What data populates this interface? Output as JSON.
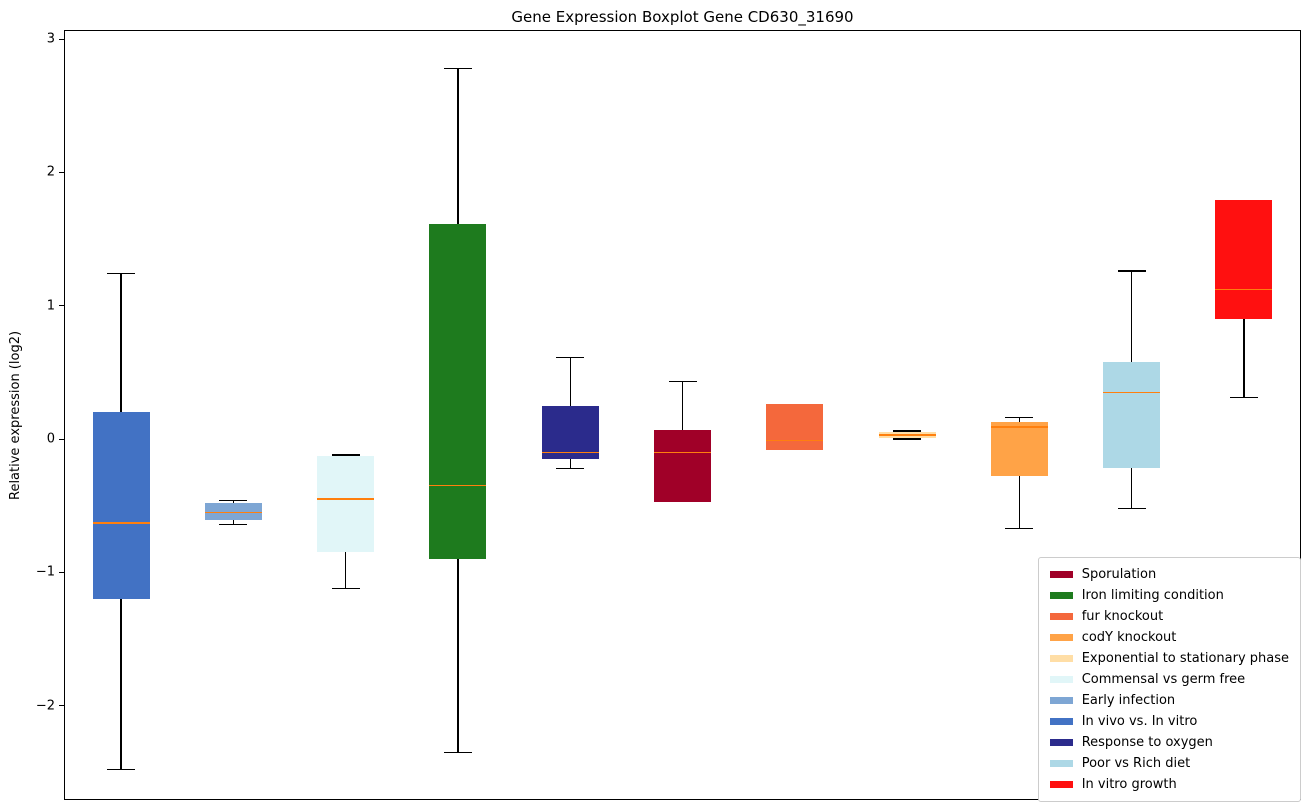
{
  "chart_data": {
    "type": "boxplot",
    "title": "Gene Expression Boxplot Gene CD630_31690",
    "ylabel": "Relative expression (log2)",
    "xlabel": "",
    "ylim": [
      -2.7,
      3.06
    ],
    "yticks": [
      3,
      2,
      1,
      0,
      -1,
      -2
    ],
    "grid": false,
    "legend_position": "lower right",
    "median_color": "#ff7f0e",
    "boxes": [
      {
        "name": "In vivo vs. In vitro",
        "color": "#4272C4",
        "whisker_low": -2.48,
        "q1": -1.2,
        "median": -0.63,
        "q3": 0.2,
        "whisker_high": 1.24
      },
      {
        "name": "Early infection",
        "color": "#7EA6D4",
        "whisker_low": -0.64,
        "q1": -0.61,
        "median": -0.55,
        "q3": -0.48,
        "whisker_high": -0.46
      },
      {
        "name": "Commensal vs germ free",
        "color": "#E1F6F8",
        "whisker_low": -1.12,
        "q1": -0.85,
        "median": -0.45,
        "q3": -0.13,
        "whisker_high": -0.12
      },
      {
        "name": "Iron limiting condition",
        "color": "#1E7B1E",
        "whisker_low": -2.35,
        "q1": -0.9,
        "median": -0.35,
        "q3": 1.61,
        "whisker_high": 2.78
      },
      {
        "name": "Response to oxygen",
        "color": "#2B2B8C",
        "whisker_low": -0.22,
        "q1": -0.15,
        "median": -0.1,
        "q3": 0.25,
        "whisker_high": 0.61
      },
      {
        "name": "Sporulation",
        "color": "#A00028",
        "whisker_low": -0.47,
        "q1": -0.47,
        "median": -0.1,
        "q3": 0.07,
        "whisker_high": 0.43
      },
      {
        "name": "fur knockout",
        "color": "#F4683C",
        "whisker_low": -0.08,
        "q1": -0.08,
        "median": -0.01,
        "q3": 0.26,
        "whisker_high": 0.26
      },
      {
        "name": "Exponential to stationary phase",
        "color": "#FFDEA6",
        "whisker_low": 0.0,
        "q1": 0.01,
        "median": 0.03,
        "q3": 0.05,
        "whisker_high": 0.06
      },
      {
        "name": "codY knockout",
        "color": "#FFA347",
        "whisker_low": -0.67,
        "q1": -0.28,
        "median": 0.09,
        "q3": 0.13,
        "whisker_high": 0.16
      },
      {
        "name": "Poor vs Rich diet",
        "color": "#ADD8E6",
        "whisker_low": -0.52,
        "q1": -0.22,
        "median": 0.35,
        "q3": 0.58,
        "whisker_high": 1.26
      },
      {
        "name": "In vitro growth",
        "color": "#FF1010",
        "whisker_low": 0.31,
        "q1": 0.9,
        "median": 1.12,
        "q3": 1.79,
        "whisker_high": 1.79
      }
    ],
    "legend": [
      {
        "label": "Sporulation",
        "color": "#A00028"
      },
      {
        "label": "Iron limiting condition",
        "color": "#1E7B1E"
      },
      {
        "label": "fur knockout",
        "color": "#F4683C"
      },
      {
        "label": "codY knockout",
        "color": "#FFA347"
      },
      {
        "label": "Exponential to stationary phase",
        "color": "#FFDEA6"
      },
      {
        "label": "Commensal vs germ free",
        "color": "#E1F6F8"
      },
      {
        "label": "Early infection",
        "color": "#7EA6D4"
      },
      {
        "label": "In vivo vs. In vitro",
        "color": "#4272C4"
      },
      {
        "label": "Response to oxygen",
        "color": "#2B2B8C"
      },
      {
        "label": "Poor vs Rich diet",
        "color": "#ADD8E6"
      },
      {
        "label": "In vitro growth",
        "color": "#FF1010"
      }
    ]
  }
}
